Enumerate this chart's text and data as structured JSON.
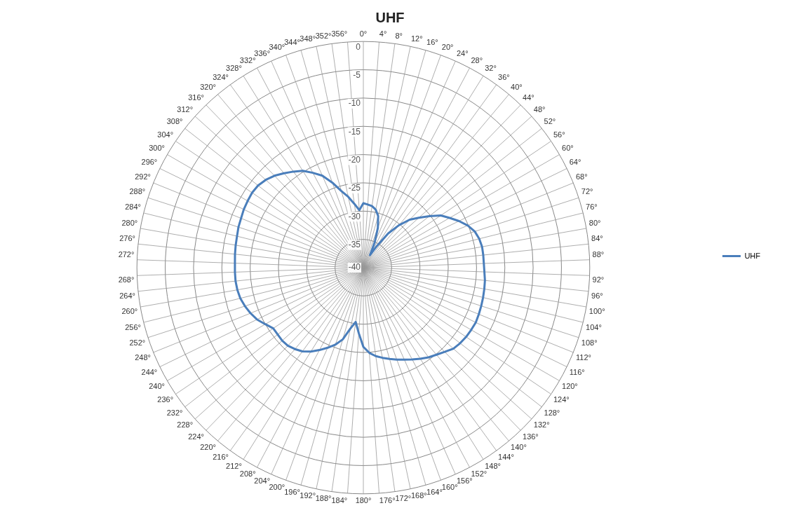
{
  "chart_data": {
    "type": "radar",
    "title": "UHF",
    "categories": [
      "0°",
      "4°",
      "8°",
      "12°",
      "16°",
      "20°",
      "24°",
      "28°",
      "32°",
      "36°",
      "40°",
      "44°",
      "48°",
      "52°",
      "56°",
      "60°",
      "64°",
      "68°",
      "72°",
      "76°",
      "80°",
      "84°",
      "88°",
      "92°",
      "96°",
      "100°",
      "104°",
      "108°",
      "112°",
      "116°",
      "120°",
      "124°",
      "128°",
      "132°",
      "136°",
      "140°",
      "144°",
      "148°",
      "152°",
      "156°",
      "160°",
      "164°",
      "168°",
      "172°",
      "176°",
      "180°",
      "184°",
      "188°",
      "192°",
      "196°",
      "200°",
      "204°",
      "208°",
      "212°",
      "216°",
      "220°",
      "224°",
      "228°",
      "232°",
      "236°",
      "240°",
      "244°",
      "248°",
      "252°",
      "256°",
      "260°",
      "264°",
      "268°",
      "272°",
      "276°",
      "280°",
      "284°",
      "288°",
      "292°",
      "296°",
      "300°",
      "304°",
      "308°",
      "312°",
      "316°",
      "320°",
      "324°",
      "328°",
      "332°",
      "336°",
      "340°",
      "344°",
      "348°",
      "352°",
      "356°"
    ],
    "series": [
      {
        "name": "UHF",
        "color": "#4a7ebb",
        "values": [
          -28.6,
          -28.8,
          -29,
          -29.5,
          -30.5,
          -32.5,
          -35,
          -37.5,
          -35.5,
          -32.5,
          -30.2,
          -28.2,
          -26.8,
          -25.2,
          -23.5,
          -22.4,
          -21.2,
          -20.1,
          -19.3,
          -18.9,
          -18.7,
          -18.7,
          -18.7,
          -18.6,
          -18.4,
          -18.3,
          -18.2,
          -18.1,
          -18,
          -17.9,
          -18,
          -18.1,
          -18.3,
          -18.6,
          -19.3,
          -19.9,
          -20.4,
          -21,
          -21.6,
          -22.2,
          -22.7,
          -23.2,
          -23.7,
          -24.2,
          -24.9,
          -26,
          -28.4,
          -30.3,
          -29,
          -26.8,
          -25.5,
          -24.5,
          -23.5,
          -22.5,
          -21.7,
          -21.2,
          -20.8,
          -20.7,
          -20.8,
          -20.8,
          -20,
          -19.1,
          -18.5,
          -18,
          -17.6,
          -17.4,
          -17.3,
          -17.3,
          -17.3,
          -17.2,
          -17.1,
          -17,
          -16.8,
          -16.7,
          -16.5,
          -16.4,
          -16.3,
          -16.4,
          -16.8,
          -17.4,
          -18.2,
          -19,
          -19.8,
          -21,
          -22.2,
          -24,
          -25.9,
          -27.2,
          -28.6,
          -29.8
        ]
      }
    ],
    "ylim": [
      -40,
      0
    ],
    "yticks": [
      -40,
      -35,
      -30,
      -25,
      -20,
      -15,
      -10,
      -5,
      0
    ],
    "grid": true,
    "legend": "right",
    "marker": "none"
  }
}
